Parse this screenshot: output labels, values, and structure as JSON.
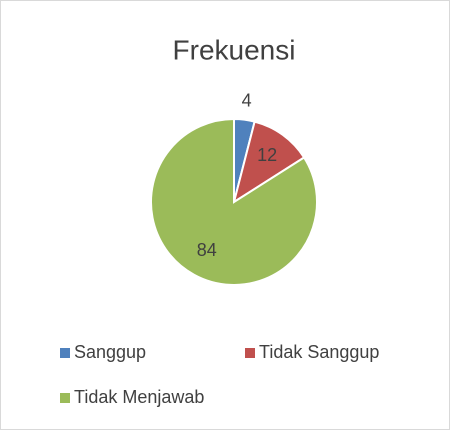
{
  "chart_data": {
    "type": "pie",
    "title": "Frekuensi",
    "categories": [
      "Sanggup",
      "Tidak Sanggup",
      "Tidak Menjawab"
    ],
    "values": [
      4,
      12,
      84
    ],
    "colors": [
      "#4f81bd",
      "#c0504d",
      "#9bbb59"
    ],
    "legend": "bottom"
  }
}
